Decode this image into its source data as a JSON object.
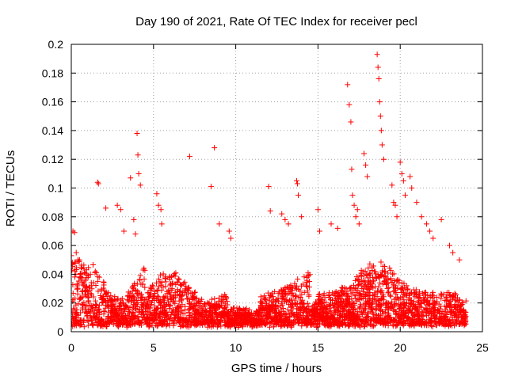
{
  "chart_data": {
    "type": "scatter",
    "title": "Day 190 of 2021, Rate Of TEC Index for receiver pecl",
    "xlabel": "GPS time / hours",
    "ylabel": "ROTI / TECUs",
    "xlim": [
      0,
      25
    ],
    "ylim": [
      0,
      0.2
    ],
    "x_ticks": [
      "0",
      "5",
      "10",
      "15",
      "20",
      "25"
    ],
    "y_ticks": [
      "0",
      "0.02",
      "0.04",
      "0.06",
      "0.08",
      "0.1",
      "0.12",
      "0.14",
      "0.16",
      "0.18",
      "0.2"
    ],
    "grid": true,
    "marker": "plus",
    "color": "#ff0000",
    "series": [
      {
        "x": [
          0.1,
          0.2,
          0.3,
          0.5,
          0.6,
          1.6,
          1.65,
          2.1,
          2.8,
          3.0,
          3.2,
          3.6,
          3.8,
          3.9,
          4.0,
          4.05,
          4.1,
          4.2,
          5.2,
          5.3,
          5.45,
          5.5,
          7.2,
          8.5,
          8.7,
          9.0,
          9.6,
          9.7,
          12.0,
          12.1,
          12.8,
          13.0,
          13.2,
          13.7,
          13.75,
          13.8,
          14.0,
          15.0,
          15.1,
          15.8,
          16.2,
          16.8,
          16.9,
          17.0,
          17.05,
          17.1,
          17.2,
          17.3,
          17.4,
          17.5,
          17.8,
          17.9,
          18.0,
          18.6,
          18.65,
          18.7,
          18.75,
          18.8,
          18.85,
          18.9,
          19.0,
          19.5,
          19.6,
          19.7,
          19.8,
          20.0,
          20.1,
          20.2,
          20.3,
          20.6,
          20.7,
          21.0,
          21.3,
          21.6,
          21.8,
          22.0,
          22.5,
          23.0,
          23.2,
          23.6
        ],
        "y": [
          0.07,
          0.069,
          0.055,
          0.05,
          0.045,
          0.104,
          0.103,
          0.086,
          0.088,
          0.085,
          0.07,
          0.107,
          0.078,
          0.068,
          0.138,
          0.123,
          0.11,
          0.102,
          0.096,
          0.088,
          0.085,
          0.075,
          0.122,
          0.101,
          0.128,
          0.075,
          0.07,
          0.065,
          0.101,
          0.084,
          0.082,
          0.078,
          0.075,
          0.105,
          0.103,
          0.095,
          0.08,
          0.085,
          0.07,
          0.075,
          0.072,
          0.172,
          0.158,
          0.146,
          0.113,
          0.095,
          0.088,
          0.08,
          0.085,
          0.075,
          0.124,
          0.116,
          0.108,
          0.193,
          0.184,
          0.176,
          0.16,
          0.15,
          0.14,
          0.13,
          0.12,
          0.102,
          0.09,
          0.088,
          0.08,
          0.118,
          0.11,
          0.105,
          0.095,
          0.108,
          0.1,
          0.09,
          0.08,
          0.075,
          0.07,
          0.065,
          0.078,
          0.06,
          0.055,
          0.05
        ]
      }
    ]
  }
}
